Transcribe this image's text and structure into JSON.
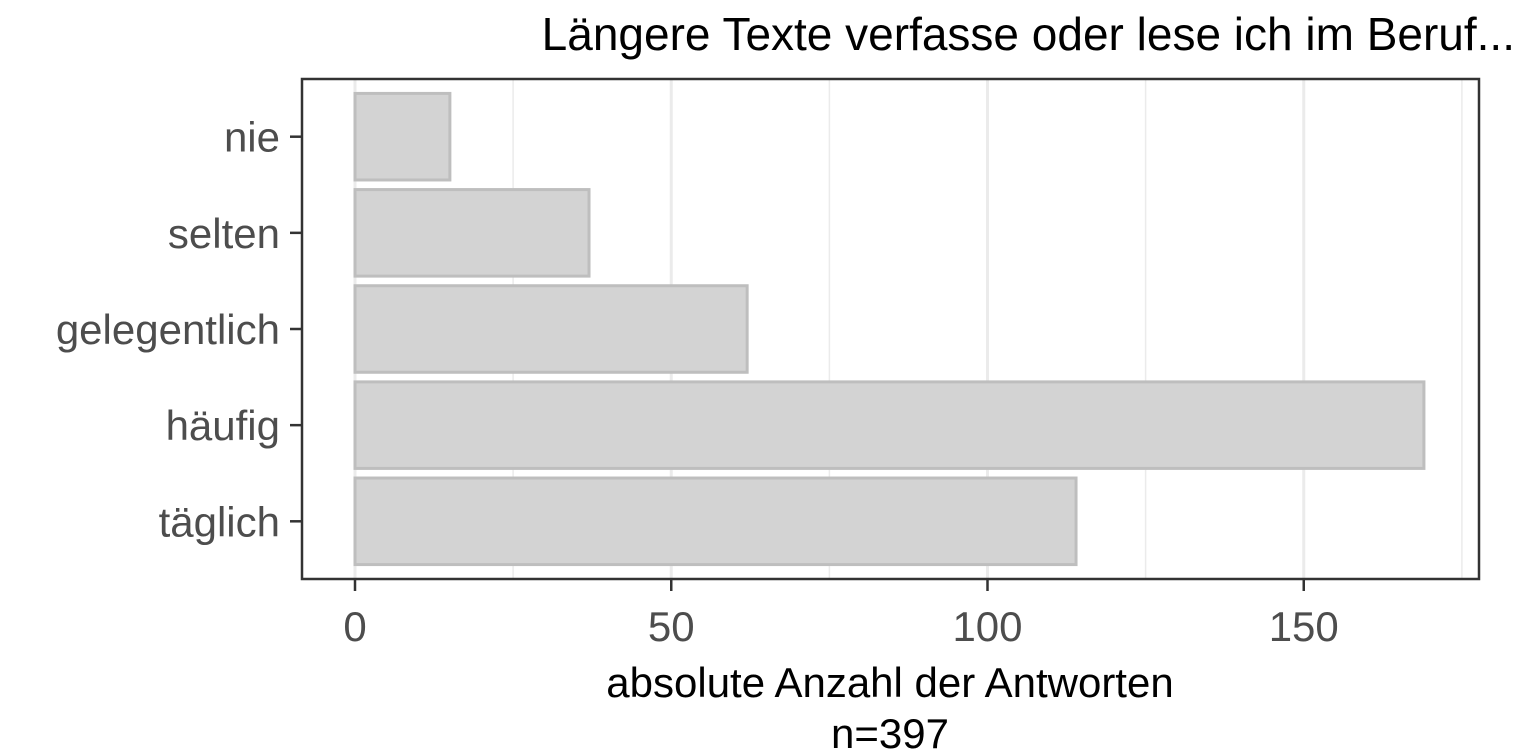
{
  "chart_data": {
    "type": "bar",
    "orientation": "horizontal",
    "title": "Längere Texte verfasse oder lese ich im Beruf...",
    "categories": [
      "nie",
      "selten",
      "gelegentlich",
      "häufig",
      "täglich"
    ],
    "values": [
      15,
      37,
      62,
      169,
      114
    ],
    "xlabel": "absolute Anzahl der Antworten",
    "xlabel_note": "n=397",
    "xlim": [
      0,
      177
    ],
    "xticks": [
      0,
      50,
      100,
      150
    ],
    "grid": true,
    "bar_fill": "#d3d3d3",
    "bar_stroke": "#bebebe"
  }
}
